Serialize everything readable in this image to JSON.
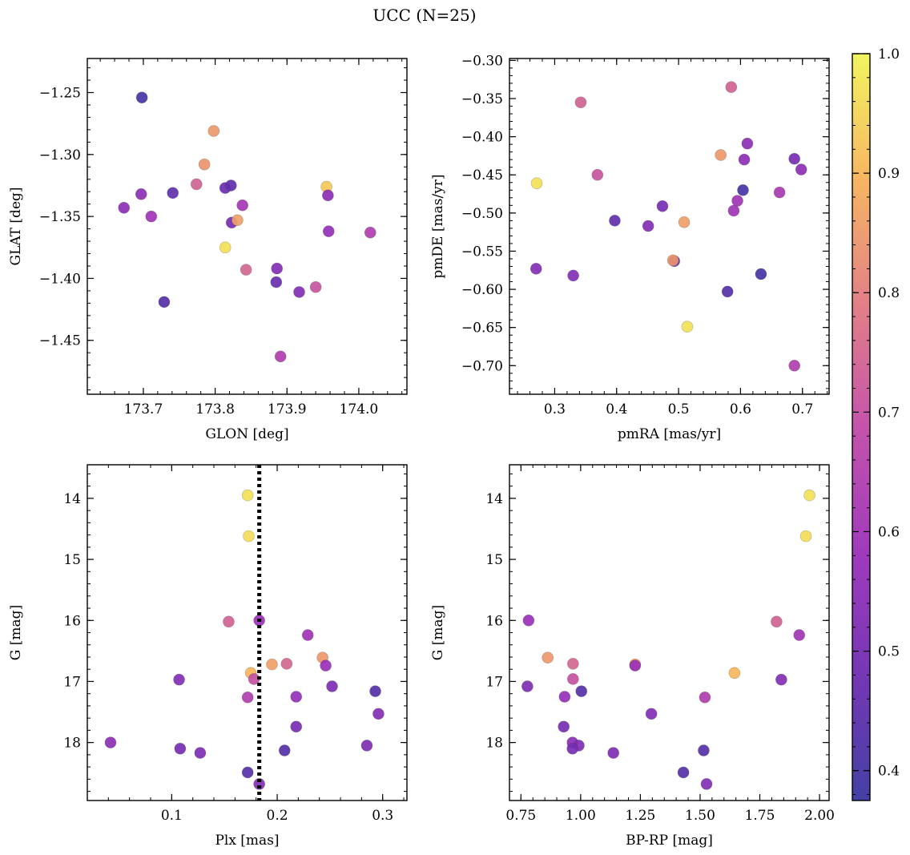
{
  "figure": {
    "title": "UCC (N=25)",
    "colorbar": {
      "range": [
        0.375,
        1.0
      ],
      "ticks": [
        0.4,
        0.5,
        0.6,
        0.7,
        0.8,
        0.9,
        1.0
      ],
      "tick_labels": [
        "0.4",
        "0.5",
        "0.6",
        "0.7",
        "0.8",
        "0.9",
        "1.0"
      ],
      "colormap": "plasma",
      "stops": [
        "#3a36a0",
        "#6d2db0",
        "#9b30b8",
        "#c04aa7",
        "#e07a80",
        "#f7b25a",
        "#f0f457"
      ]
    }
  },
  "chart_data": [
    {
      "type": "scatter",
      "xlabel": "GLON [deg]",
      "ylabel": "GLAT [deg]",
      "xlim": [
        173.622,
        174.067
      ],
      "ylim": [
        -1.4935,
        -1.2225
      ],
      "y_inverted": false,
      "xticks": [
        173.7,
        173.8,
        173.9,
        174.0
      ],
      "xtick_labels": [
        "173.7",
        "173.8",
        "173.9",
        "174.0"
      ],
      "yticks": [
        -1.25,
        -1.3,
        -1.35,
        -1.4,
        -1.45
      ],
      "ytick_labels": [
        "−1.25",
        "−1.30",
        "−1.35",
        "−1.40",
        "−1.45"
      ],
      "points": [
        {
          "x": 173.698,
          "y": -1.254,
          "c": 0.4
        },
        {
          "x": 173.798,
          "y": -1.281,
          "c": 0.85
        },
        {
          "x": 173.785,
          "y": -1.308,
          "c": 0.84
        },
        {
          "x": 173.774,
          "y": -1.324,
          "c": 0.74
        },
        {
          "x": 173.814,
          "y": -1.327,
          "c": 0.48
        },
        {
          "x": 173.822,
          "y": -1.325,
          "c": 0.45
        },
        {
          "x": 173.955,
          "y": -1.326,
          "c": 0.93
        },
        {
          "x": 173.957,
          "y": -1.333,
          "c": 0.55
        },
        {
          "x": 173.697,
          "y": -1.332,
          "c": 0.55
        },
        {
          "x": 173.741,
          "y": -1.331,
          "c": 0.45
        },
        {
          "x": 173.838,
          "y": -1.341,
          "c": 0.61
        },
        {
          "x": 173.673,
          "y": -1.343,
          "c": 0.55
        },
        {
          "x": 173.711,
          "y": -1.35,
          "c": 0.6
        },
        {
          "x": 173.823,
          "y": -1.355,
          "c": 0.5
        },
        {
          "x": 173.831,
          "y": -1.353,
          "c": 0.86
        },
        {
          "x": 173.958,
          "y": -1.362,
          "c": 0.57
        },
        {
          "x": 174.016,
          "y": -1.363,
          "c": 0.64
        },
        {
          "x": 173.814,
          "y": -1.375,
          "c": 0.97
        },
        {
          "x": 173.843,
          "y": -1.393,
          "c": 0.75
        },
        {
          "x": 173.886,
          "y": -1.392,
          "c": 0.53
        },
        {
          "x": 173.885,
          "y": -1.403,
          "c": 0.47
        },
        {
          "x": 173.917,
          "y": -1.411,
          "c": 0.53
        },
        {
          "x": 173.94,
          "y": -1.407,
          "c": 0.71
        },
        {
          "x": 173.729,
          "y": -1.419,
          "c": 0.43
        },
        {
          "x": 173.891,
          "y": -1.463,
          "c": 0.64
        }
      ]
    },
    {
      "type": "scatter",
      "xlabel": "pmRA [mas/yr]",
      "ylabel": "pmDE [mas/yr]",
      "xlim": [
        0.227,
        0.743
      ],
      "ylim": [
        -0.7375,
        -0.2975
      ],
      "y_inverted": false,
      "xticks": [
        0.3,
        0.4,
        0.5,
        0.6,
        0.7
      ],
      "xtick_labels": [
        "0.3",
        "0.4",
        "0.5",
        "0.6",
        "0.7"
      ],
      "yticks": [
        -0.3,
        -0.35,
        -0.4,
        -0.45,
        -0.5,
        -0.55,
        -0.6,
        -0.65,
        -0.7
      ],
      "ytick_labels": [
        "−0.30",
        "−0.35",
        "−0.40",
        "−0.45",
        "−0.50",
        "−0.55",
        "−0.60",
        "−0.65",
        "−0.70"
      ],
      "points": [
        {
          "x": 0.585,
          "y": -0.335,
          "c": 0.74
        },
        {
          "x": 0.342,
          "y": -0.355,
          "c": 0.74
        },
        {
          "x": 0.611,
          "y": -0.409,
          "c": 0.55
        },
        {
          "x": 0.568,
          "y": -0.424,
          "c": 0.85
        },
        {
          "x": 0.687,
          "y": -0.429,
          "c": 0.5
        },
        {
          "x": 0.606,
          "y": -0.43,
          "c": 0.55
        },
        {
          "x": 0.698,
          "y": -0.443,
          "c": 0.55
        },
        {
          "x": 0.369,
          "y": -0.45,
          "c": 0.71
        },
        {
          "x": 0.271,
          "y": -0.461,
          "c": 0.97
        },
        {
          "x": 0.604,
          "y": -0.47,
          "c": 0.4
        },
        {
          "x": 0.663,
          "y": -0.473,
          "c": 0.62
        },
        {
          "x": 0.595,
          "y": -0.484,
          "c": 0.6
        },
        {
          "x": 0.474,
          "y": -0.491,
          "c": 0.5
        },
        {
          "x": 0.589,
          "y": -0.497,
          "c": 0.6
        },
        {
          "x": 0.397,
          "y": -0.51,
          "c": 0.45
        },
        {
          "x": 0.509,
          "y": -0.512,
          "c": 0.86
        },
        {
          "x": 0.451,
          "y": -0.517,
          "c": 0.53
        },
        {
          "x": 0.493,
          "y": -0.563,
          "c": 0.45
        },
        {
          "x": 0.491,
          "y": -0.562,
          "c": 0.84
        },
        {
          "x": 0.27,
          "y": -0.573,
          "c": 0.53
        },
        {
          "x": 0.633,
          "y": -0.58,
          "c": 0.4
        },
        {
          "x": 0.33,
          "y": -0.582,
          "c": 0.53
        },
        {
          "x": 0.579,
          "y": -0.603,
          "c": 0.43
        },
        {
          "x": 0.514,
          "y": -0.649,
          "c": 0.97
        },
        {
          "x": 0.687,
          "y": -0.7,
          "c": 0.64
        }
      ]
    },
    {
      "type": "scatter",
      "xlabel": "Plx [mas]",
      "ylabel": "G [mag]",
      "xlim": [
        0.02,
        0.323
      ],
      "ylim": [
        13.45,
        18.95
      ],
      "y_inverted": true,
      "xticks": [
        0.1,
        0.2,
        0.3
      ],
      "xtick_labels": [
        "0.1",
        "0.2",
        "0.3"
      ],
      "yticks": [
        14,
        15,
        16,
        17,
        18
      ],
      "ytick_labels": [
        "14",
        "15",
        "16",
        "17",
        "18"
      ],
      "vline": {
        "x": 0.183,
        "style": "dotted",
        "color": "#000000"
      },
      "points": [
        {
          "x": 0.172,
          "y": 13.95,
          "c": 0.97
        },
        {
          "x": 0.173,
          "y": 14.62,
          "c": 0.96
        },
        {
          "x": 0.154,
          "y": 16.02,
          "c": 0.74
        },
        {
          "x": 0.183,
          "y": 16.0,
          "c": 0.58
        },
        {
          "x": 0.229,
          "y": 16.24,
          "c": 0.6
        },
        {
          "x": 0.243,
          "y": 16.61,
          "c": 0.85
        },
        {
          "x": 0.195,
          "y": 16.72,
          "c": 0.86
        },
        {
          "x": 0.209,
          "y": 16.71,
          "c": 0.75
        },
        {
          "x": 0.246,
          "y": 16.74,
          "c": 0.58
        },
        {
          "x": 0.175,
          "y": 16.86,
          "c": 0.9
        },
        {
          "x": 0.178,
          "y": 16.96,
          "c": 0.7
        },
        {
          "x": 0.107,
          "y": 16.97,
          "c": 0.53
        },
        {
          "x": 0.252,
          "y": 17.08,
          "c": 0.52
        },
        {
          "x": 0.293,
          "y": 17.16,
          "c": 0.43
        },
        {
          "x": 0.218,
          "y": 17.25,
          "c": 0.57
        },
        {
          "x": 0.172,
          "y": 17.26,
          "c": 0.64
        },
        {
          "x": 0.296,
          "y": 17.53,
          "c": 0.53
        },
        {
          "x": 0.218,
          "y": 17.74,
          "c": 0.5
        },
        {
          "x": 0.042,
          "y": 18.0,
          "c": 0.55
        },
        {
          "x": 0.285,
          "y": 18.05,
          "c": 0.52
        },
        {
          "x": 0.108,
          "y": 18.1,
          "c": 0.5
        },
        {
          "x": 0.207,
          "y": 18.13,
          "c": 0.43
        },
        {
          "x": 0.127,
          "y": 18.17,
          "c": 0.52
        },
        {
          "x": 0.172,
          "y": 18.49,
          "c": 0.43
        },
        {
          "x": 0.183,
          "y": 18.68,
          "c": 0.53
        }
      ]
    },
    {
      "type": "scatter",
      "xlabel": "BP-RP [mag]",
      "ylabel": "G [mag]",
      "xlim": [
        0.702,
        2.04
      ],
      "ylim": [
        13.45,
        18.95
      ],
      "y_inverted": true,
      "xticks": [
        0.75,
        1.0,
        1.25,
        1.5,
        1.75,
        2.0
      ],
      "xtick_labels": [
        "0.75",
        "1.00",
        "1.25",
        "1.50",
        "1.75",
        "2.00"
      ],
      "yticks": [
        14,
        15,
        16,
        17,
        18
      ],
      "ytick_labels": [
        "14",
        "15",
        "16",
        "17",
        "18"
      ],
      "points": [
        {
          "x": 1.958,
          "y": 13.95,
          "c": 0.97
        },
        {
          "x": 1.943,
          "y": 14.62,
          "c": 0.96
        },
        {
          "x": 0.782,
          "y": 16.0,
          "c": 0.58
        },
        {
          "x": 1.82,
          "y": 16.02,
          "c": 0.74
        },
        {
          "x": 1.915,
          "y": 16.24,
          "c": 0.6
        },
        {
          "x": 0.862,
          "y": 16.61,
          "c": 0.85
        },
        {
          "x": 0.968,
          "y": 16.71,
          "c": 0.75
        },
        {
          "x": 1.228,
          "y": 16.72,
          "c": 0.86
        },
        {
          "x": 1.228,
          "y": 16.74,
          "c": 0.58
        },
        {
          "x": 1.644,
          "y": 16.86,
          "c": 0.9
        },
        {
          "x": 0.968,
          "y": 16.96,
          "c": 0.7
        },
        {
          "x": 1.84,
          "y": 16.97,
          "c": 0.53
        },
        {
          "x": 0.777,
          "y": 17.08,
          "c": 0.52
        },
        {
          "x": 1.003,
          "y": 17.16,
          "c": 0.43
        },
        {
          "x": 0.933,
          "y": 17.25,
          "c": 0.57
        },
        {
          "x": 1.52,
          "y": 17.26,
          "c": 0.64
        },
        {
          "x": 1.296,
          "y": 17.53,
          "c": 0.53
        },
        {
          "x": 0.929,
          "y": 17.74,
          "c": 0.5
        },
        {
          "x": 0.966,
          "y": 18.0,
          "c": 0.55
        },
        {
          "x": 0.992,
          "y": 18.05,
          "c": 0.52
        },
        {
          "x": 0.966,
          "y": 18.1,
          "c": 0.5
        },
        {
          "x": 1.137,
          "y": 18.17,
          "c": 0.52
        },
        {
          "x": 1.515,
          "y": 18.13,
          "c": 0.43
        },
        {
          "x": 1.43,
          "y": 18.49,
          "c": 0.43
        },
        {
          "x": 1.527,
          "y": 18.68,
          "c": 0.53
        }
      ]
    }
  ]
}
